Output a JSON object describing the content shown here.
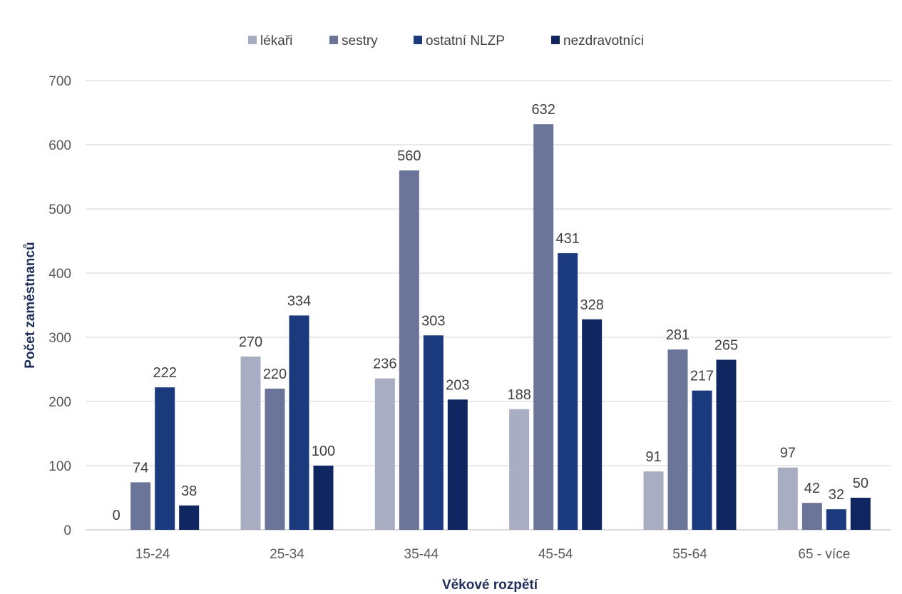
{
  "chart_data": {
    "type": "bar",
    "title": "",
    "xlabel": "Věkové rozpětí",
    "ylabel": "Počet zaměstnanců",
    "ylim": [
      0,
      700
    ],
    "yticks": [
      "0",
      "100",
      "200",
      "300",
      "400",
      "500",
      "600",
      "700"
    ],
    "grid": true,
    "legend_position": "top",
    "categories": [
      "15-24",
      "25-34",
      "35-44",
      "45-54",
      "55-64",
      "65 - více"
    ],
    "series": [
      {
        "name": "lékaři",
        "color": "#a8adc2",
        "values": [
          0,
          270,
          236,
          188,
          91,
          97
        ]
      },
      {
        "name": "sestry",
        "color": "#6a7599",
        "values": [
          74,
          220,
          560,
          632,
          281,
          42
        ]
      },
      {
        "name": "ostatní NLZP",
        "color": "#1b3a7e",
        "values": [
          222,
          334,
          303,
          431,
          217,
          32
        ]
      },
      {
        "name": "nezdravotníci",
        "color": "#0f2660",
        "values": [
          38,
          100,
          203,
          328,
          265,
          50
        ]
      }
    ]
  }
}
